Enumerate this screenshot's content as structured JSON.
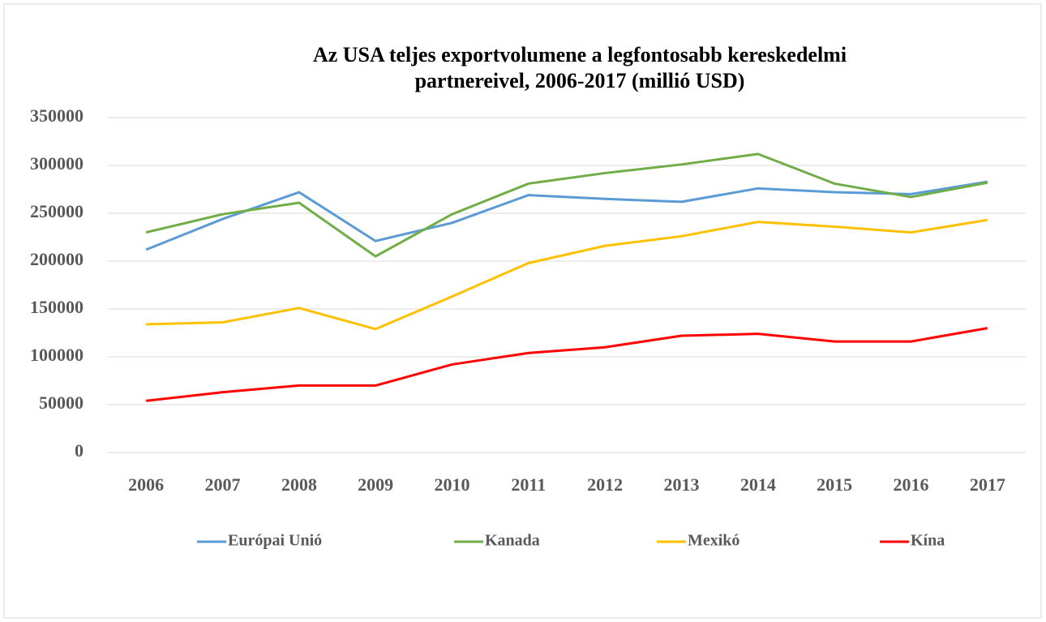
{
  "chart_data": {
    "type": "line",
    "title": [
      "Az USA teljes exportvolumene a legfontosabb kereskedelmi",
      "partnereivel, 2006-2017 (millió USD)"
    ],
    "categories": [
      "2006",
      "2007",
      "2008",
      "2009",
      "2010",
      "2011",
      "2012",
      "2013",
      "2014",
      "2015",
      "2016",
      "2017"
    ],
    "series": [
      {
        "name": "Európai Unió",
        "color": "#5b9bd5",
        "values": [
          212000,
          244000,
          272000,
          221000,
          240000,
          269000,
          265000,
          262000,
          276000,
          272000,
          270000,
          283000
        ]
      },
      {
        "name": "Kanada",
        "color": "#70ad47",
        "values": [
          230000,
          249000,
          261000,
          205000,
          249000,
          281000,
          292000,
          301000,
          312000,
          281000,
          267000,
          282000
        ]
      },
      {
        "name": "Mexikó",
        "color": "#ffc000",
        "values": [
          134000,
          136000,
          151000,
          129000,
          163000,
          198000,
          216000,
          226000,
          241000,
          236000,
          230000,
          243000
        ]
      },
      {
        "name": "Kína",
        "color": "#ff0000",
        "values": [
          54000,
          63000,
          70000,
          70000,
          92000,
          104000,
          110000,
          122000,
          124000,
          116000,
          116000,
          130000
        ]
      }
    ],
    "ylim": [
      0,
      350000
    ],
    "yticks": [
      0,
      50000,
      100000,
      150000,
      200000,
      250000,
      300000,
      350000
    ],
    "grid": true,
    "legend": "bottom"
  }
}
